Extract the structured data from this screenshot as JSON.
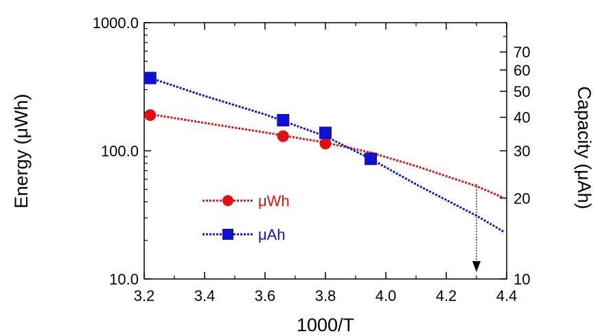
{
  "chart_data": {
    "type": "line",
    "title": "",
    "xlabel": "1000/T",
    "ylabel_left": "Energy (μWh)",
    "ylabel_right": "Capacity (μAh)",
    "xlim": [
      3.2,
      4.4
    ],
    "x_ticks": [
      3.2,
      3.4,
      3.6,
      3.8,
      4.0,
      4.2,
      4.4
    ],
    "x_tick_labels": [
      "3.2",
      "3.4",
      "3.6",
      "3.8",
      "4.0",
      "4.2",
      "4.4"
    ],
    "ylim_left": [
      10,
      1000
    ],
    "y_scale_left": "log",
    "y_ticks_left": [
      10,
      100,
      1000
    ],
    "y_tick_labels_left": [
      "10.0",
      "100.0",
      "1000.0"
    ],
    "ylim_right": [
      10,
      90
    ],
    "y_scale_right": "log",
    "y_ticks_right": [
      10,
      20,
      30,
      40,
      50,
      60,
      70
    ],
    "y_tick_labels_right": [
      "10",
      "20",
      "30",
      "40",
      "50",
      "60",
      "70"
    ],
    "legend_position": "lower-left",
    "grid": false,
    "series": [
      {
        "name": "μWh",
        "axis": "left",
        "color": "#e01010",
        "marker": "circle",
        "points": [
          [
            3.22,
            190
          ],
          [
            3.66,
            130
          ],
          [
            3.8,
            114
          ],
          [
            3.95,
            88
          ]
        ],
        "fit": [
          [
            3.22,
            193
          ],
          [
            3.4,
            165
          ],
          [
            3.6,
            139
          ],
          [
            3.8,
            116
          ],
          [
            3.95,
            97
          ],
          [
            4.1,
            76
          ],
          [
            4.3,
            53
          ],
          [
            4.39,
            43
          ]
        ]
      },
      {
        "name": "μAh",
        "axis": "right",
        "color": "#1010d0",
        "marker": "square",
        "points": [
          [
            3.22,
            56
          ],
          [
            3.66,
            39
          ],
          [
            3.8,
            35
          ],
          [
            3.95,
            28
          ]
        ],
        "fit": [
          [
            3.22,
            56
          ],
          [
            3.4,
            48
          ],
          [
            3.6,
            41
          ],
          [
            3.8,
            34
          ],
          [
            3.95,
            28
          ],
          [
            4.1,
            22.5
          ],
          [
            4.3,
            17.2
          ],
          [
            4.39,
            15
          ]
        ]
      }
    ],
    "annotations": [
      {
        "type": "arrow",
        "x": 4.3,
        "y_from": 55,
        "y_to": 10,
        "axis": "left",
        "style": "dotted",
        "color": "#000000"
      }
    ]
  }
}
